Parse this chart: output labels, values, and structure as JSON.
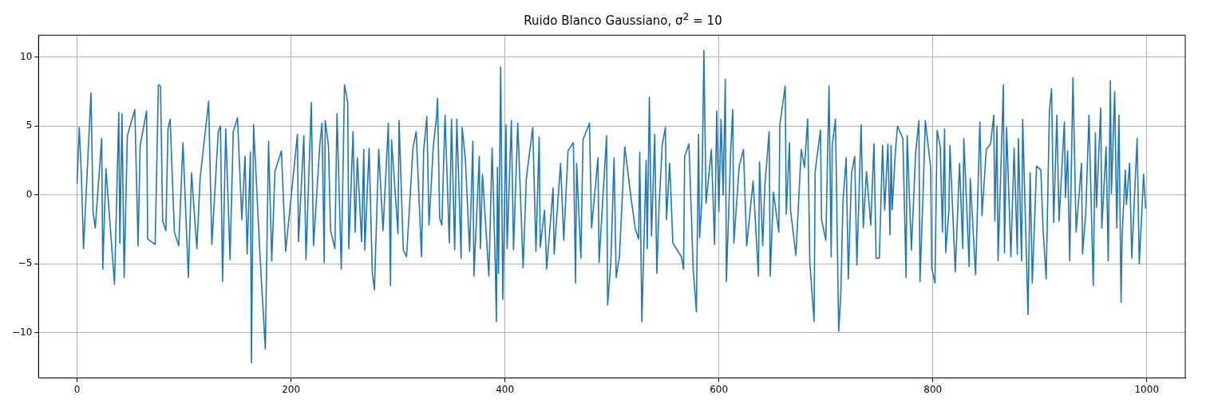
{
  "chart_data": {
    "type": "line",
    "title": "Ruido Blanco Gaussiano, σ$^{2}$ = 10",
    "xlim": [
      -36,
      1036
    ],
    "xticks": [
      0,
      200,
      400,
      600,
      800,
      1000
    ],
    "ylim": [
      -13.3,
      11.6
    ],
    "yticks": [
      -10,
      -5,
      0,
      5,
      10
    ],
    "grid": true,
    "legend": false,
    "marker": "none",
    "line_style": "solid",
    "series": [
      {
        "color": "#1f77b4",
        "x": [
          0,
          2,
          4,
          6,
          13,
          15,
          17,
          23,
          24,
          27,
          35,
          39,
          40,
          42,
          44,
          47,
          54,
          57,
          59,
          65,
          66,
          73,
          76,
          78,
          80,
          83,
          85,
          87,
          91,
          95,
          99,
          104,
          107,
          112,
          115,
          123,
          126,
          132,
          134,
          136,
          139,
          143,
          146,
          150,
          154,
          157,
          159,
          162,
          163,
          165,
          171,
          176,
          179,
          182,
          185,
          191,
          195,
          206,
          207,
          212,
          214,
          219,
          221,
          227,
          229,
          231,
          232,
          235,
          237,
          241,
          243,
          247,
          250,
          253,
          254,
          258,
          260,
          262,
          266,
          268,
          269,
          273,
          276,
          278,
          282,
          286,
          291,
          293,
          294,
          300,
          301,
          305,
          308,
          314,
          317,
          322,
          324,
          327,
          329,
          333,
          336,
          337,
          339,
          341,
          344,
          348,
          350,
          353,
          355,
          359,
          360,
          363,
          367,
          370,
          371,
          376,
          377,
          379,
          385,
          388,
          391,
          392,
          393,
          394,
          396,
          398,
          401,
          402,
          406,
          408,
          412,
          417,
          420,
          426,
          429,
          432,
          433,
          437,
          439,
          445,
          446,
          452,
          455,
          459,
          464,
          466,
          467,
          471,
          473,
          479,
          481,
          487,
          488,
          495,
          496,
          499,
          502,
          504,
          507,
          512,
          518,
          522,
          525,
          526,
          528,
          532,
          533,
          535,
          537,
          540,
          542,
          544,
          547,
          550,
          551,
          554,
          557,
          565,
          567,
          568,
          572,
          576,
          579,
          581,
          582,
          584,
          586,
          588,
          593,
          596,
          598,
          600,
          602,
          604,
          606,
          607,
          611,
          613,
          614,
          619,
          623,
          626,
          632,
          637,
          638,
          641,
          643,
          647,
          648,
          651,
          656,
          657,
          662,
          663,
          666,
          667,
          672,
          677,
          680,
          683,
          685,
          689,
          690,
          695,
          696,
          700,
          703,
          705,
          706,
          709,
          712,
          714,
          716,
          719,
          721,
          724,
          727,
          729,
          733,
          735,
          738,
          742,
          745,
          747,
          750,
          753,
          755,
          758,
          760,
          761,
          762,
          765,
          767,
          772,
          775,
          776,
          780,
          784,
          787,
          788,
          791,
          793,
          798,
          799,
          802,
          804,
          807,
          809,
          811,
          812,
          815,
          816,
          821,
          825,
          828,
          829,
          834,
          835,
          840,
          844,
          846,
          850,
          854,
          857,
          858,
          860,
          861,
          866,
          867,
          869,
          873,
          876,
          879,
          880,
          883,
          884,
          889,
          891,
          893,
          897,
          901,
          903,
          906,
          909,
          911,
          913,
          916,
          918,
          923,
          924,
          926,
          928,
          931,
          934,
          939,
          940,
          943,
          946,
          950,
          952,
          953,
          957,
          958,
          962,
          964,
          966,
          967,
          970,
          972,
          974,
          976,
          977,
          980,
          981,
          984,
          986,
          991,
          993,
          995,
          997,
          999
        ],
        "values": [
          0.8,
          4.9,
          1.5,
          -3.9,
          7.4,
          -1.3,
          -2.4,
          4.1,
          -5.4,
          1.9,
          -6.5,
          6.0,
          -3.5,
          5.9,
          -6.0,
          4.3,
          6.2,
          -3.7,
          3.6,
          6.1,
          -3.2,
          -3.6,
          8.0,
          7.9,
          -1.9,
          -2.6,
          4.8,
          5.5,
          -2.7,
          -3.7,
          3.8,
          -6.0,
          1.6,
          -3.9,
          1.2,
          6.8,
          -3.6,
          4.6,
          5.0,
          -6.3,
          4.8,
          -4.7,
          4.6,
          5.6,
          -1.8,
          2.8,
          -4.3,
          3.1,
          -12.2,
          5.1,
          -4.4,
          -11.2,
          3.9,
          -4.8,
          1.7,
          3.2,
          -4.1,
          4.4,
          -3.4,
          4.3,
          -4.7,
          6.7,
          -3.7,
          3.7,
          5.2,
          -4.9,
          5.4,
          3.6,
          -2.6,
          -3.9,
          5.9,
          -5.4,
          8.0,
          6.7,
          -3.9,
          4.6,
          -2.7,
          2.7,
          -3.4,
          3.3,
          -4.0,
          3.4,
          -5.6,
          -6.9,
          3.3,
          -2.6,
          5.2,
          -6.6,
          4.0,
          -2.8,
          5.4,
          -4.0,
          -4.5,
          3.4,
          4.6,
          -4.5,
          3.2,
          5.7,
          -2.2,
          3.5,
          5.6,
          7.0,
          -1.7,
          -2.2,
          5.8,
          -3.5,
          5.5,
          -4.0,
          5.5,
          -4.6,
          4.9,
          2.6,
          -4.1,
          3.9,
          -5.9,
          2.8,
          -3.9,
          1.5,
          -5.9,
          3.4,
          -5.2,
          -9.2,
          2.0,
          -5.7,
          9.3,
          -7.6,
          5.1,
          -3.9,
          5.4,
          -4.0,
          5.2,
          -5.3,
          1.2,
          4.9,
          -4.1,
          4.2,
          -3.8,
          -1.1,
          -5.4,
          0.5,
          -4.3,
          2.3,
          -3.3,
          3.2,
          3.8,
          -6.4,
          2.3,
          -4.6,
          4.0,
          5.2,
          -2.4,
          2.7,
          -4.9,
          4.3,
          -8.0,
          -4.9,
          2.7,
          -6.0,
          -4.5,
          3.5,
          -0.3,
          -2.5,
          -3.2,
          3.1,
          -9.2,
          2.5,
          -3.9,
          7.1,
          -3.0,
          4.4,
          -5.7,
          -1.0,
          3.6,
          4.9,
          -1.8,
          2.3,
          -3.5,
          -4.5,
          -5.4,
          2.8,
          3.7,
          -5.4,
          -8.5,
          4.4,
          -3.1,
          -0.6,
          10.5,
          -0.6,
          3.3,
          -3.6,
          6.1,
          -1.2,
          5.5,
          0,
          8.4,
          -6.3,
          3.1,
          6.2,
          -3.5,
          2.1,
          3.3,
          -3.7,
          1.0,
          -5.9,
          2.4,
          -3.7,
          0.7,
          4.6,
          -5.9,
          0.2,
          -2.7,
          5.1,
          7.9,
          -1.4,
          3.8,
          -1.1,
          -4.4,
          3.3,
          2.0,
          5.5,
          -4.9,
          -9.2,
          1.7,
          4.7,
          -1.8,
          -3.3,
          7.9,
          -4.5,
          3.6,
          5.5,
          -9.9,
          -7.2,
          -0.5,
          2.7,
          -6.1,
          1.6,
          2.8,
          -5.1,
          5.1,
          -2.4,
          1.7,
          -2.2,
          3.7,
          -4.6,
          -4.6,
          3.6,
          -1.1,
          3.7,
          -2.9,
          3.6,
          -1.1,
          3.1,
          5.0,
          4.1,
          -6.0,
          4.3,
          -4.0,
          3.1,
          5.4,
          -6.3,
          0.3,
          5.4,
          2.0,
          -5.3,
          -6.4,
          4.7,
          3.5,
          -2.7,
          4.8,
          -4.2,
          -1.2,
          3.6,
          -5.6,
          2.3,
          -3.9,
          4.1,
          -5.2,
          1.2,
          -5.8,
          5.3,
          -1.5,
          3.3,
          3.7,
          5.8,
          -1.9,
          5.0,
          -4.8,
          8.0,
          -4.2,
          4.9,
          -4.5,
          3.4,
          -4.3,
          4.1,
          -4.8,
          5.5,
          -8.7,
          1.6,
          -6.4,
          2.1,
          1.8,
          -2.4,
          -6.1,
          6.1,
          7.7,
          -2.0,
          5.8,
          -1.9,
          5.3,
          -0.2,
          3.2,
          -4.8,
          8.5,
          -2.7,
          2.3,
          -4.3,
          -1.3,
          5.8,
          -6.6,
          4.5,
          -0.9,
          6.3,
          -2.4,
          3.5,
          -4.8,
          8.3,
          0.1,
          7.5,
          -2.4,
          5.8,
          -7.8,
          -2.9,
          1.8,
          -0.7,
          2.3,
          -4.6,
          4.1,
          -5.0,
          -1.9,
          1.5,
          -1.0
        ]
      }
    ]
  }
}
